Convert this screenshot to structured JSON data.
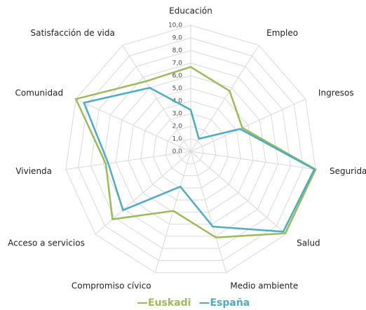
{
  "chart_data": {
    "type": "radar",
    "categories": [
      "Educación",
      "Empleo",
      "Ingresos",
      "Seguridad",
      "Salud",
      "Medio ambiente",
      "Compromiso cívico",
      "Acceso a servicios",
      "Vivienda",
      "Comunidad",
      "Satisfacción de vida"
    ],
    "series": [
      {
        "name": "Euskadi",
        "color": "#9bbb59",
        "values": [
          6.7,
          5.7,
          4.5,
          10.0,
          9.9,
          7.1,
          4.9,
          8.2,
          6.8,
          10.0,
          6.6
        ]
      },
      {
        "name": "España",
        "color": "#4bacc6",
        "values": [
          3.3,
          1.2,
          4.3,
          9.9,
          9.7,
          6.2,
          2.9,
          7.1,
          6.6,
          9.3,
          6.0
        ]
      }
    ],
    "ylim": [
      0,
      10
    ],
    "yticks": [
      {
        "value": 0,
        "label": "0,0"
      },
      {
        "value": 1,
        "label": "1,0"
      },
      {
        "value": 2,
        "label": "2,0"
      },
      {
        "value": 3,
        "label": "3,0"
      },
      {
        "value": 4,
        "label": "4,0"
      },
      {
        "value": 5,
        "label": "5,0"
      },
      {
        "value": 6,
        "label": "6,0"
      },
      {
        "value": 7,
        "label": "7,0"
      },
      {
        "value": 8,
        "label": "8,0"
      },
      {
        "value": 9,
        "label": "9,0"
      },
      {
        "value": 10,
        "label": "10,0"
      }
    ],
    "grid": true,
    "legend": "bottom"
  }
}
